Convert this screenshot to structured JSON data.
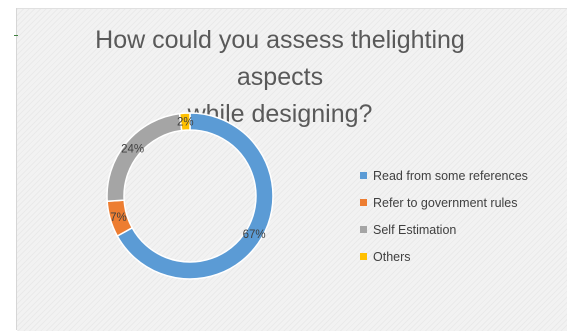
{
  "chart_data": {
    "type": "pie",
    "variant": "doughnut",
    "title": "How could you assess thelighting aspects while designing?",
    "title_lines": [
      "How could you assess thelighting aspects",
      "while designing?"
    ],
    "categories": [
      "Read from some references",
      "Refer to government rules",
      "Self Estimation",
      "Others"
    ],
    "values": [
      67,
      7,
      24,
      2
    ],
    "labels": [
      "67%",
      "7%",
      "24%",
      "2%"
    ],
    "colors": [
      "#5b9bd5",
      "#ed7d31",
      "#a5a5a5",
      "#ffc000"
    ],
    "label_colors": [
      "#404040",
      "#404040",
      "#404040",
      "#404040"
    ],
    "legend_position": "right"
  }
}
